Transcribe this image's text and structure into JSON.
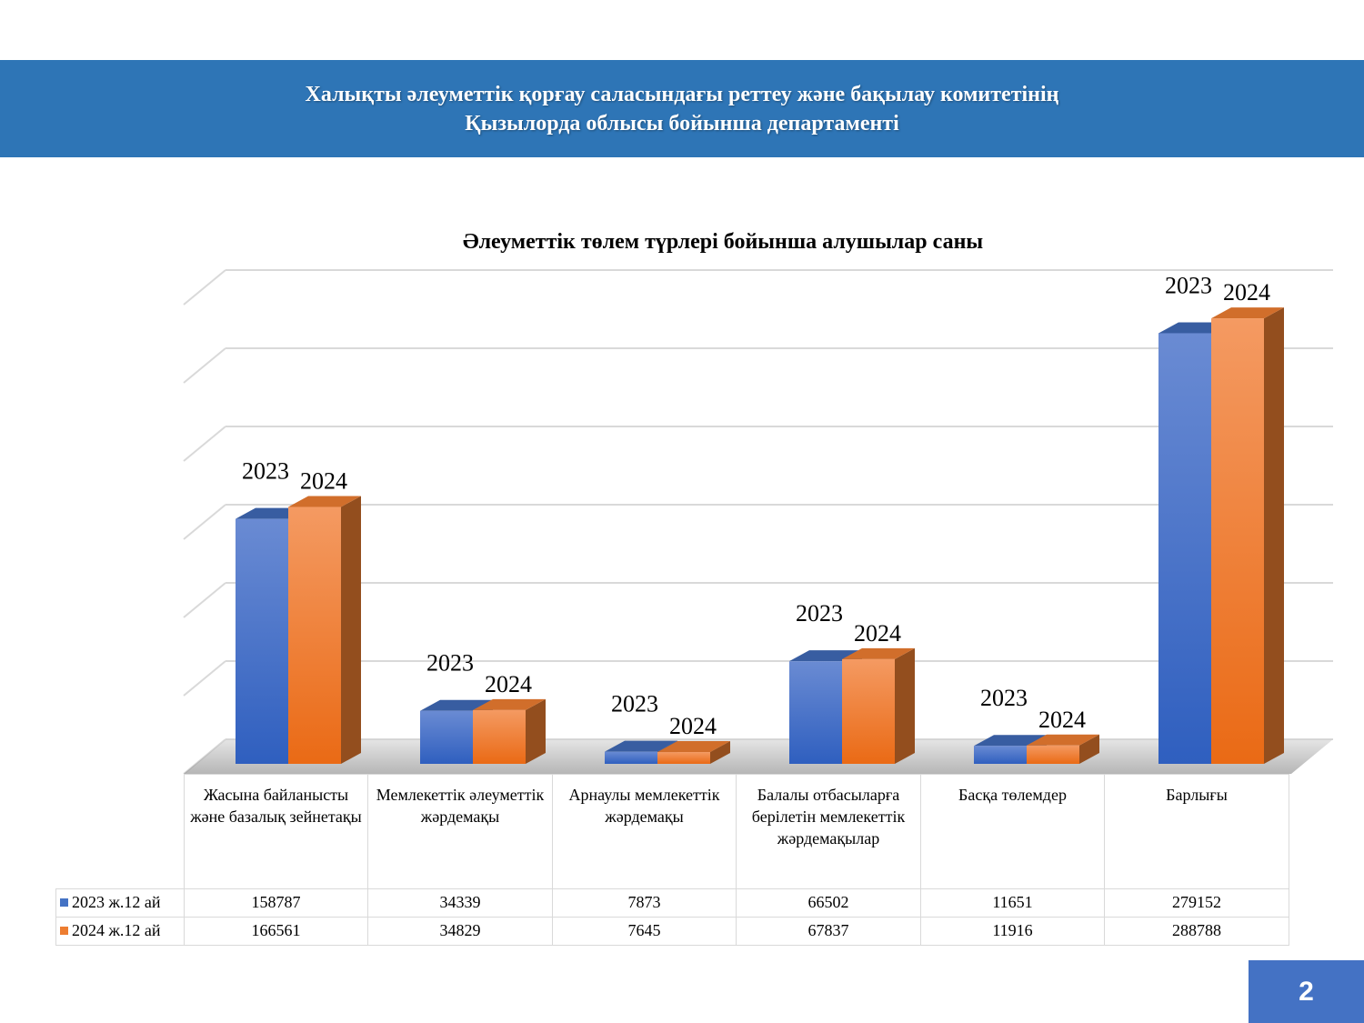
{
  "header": {
    "line1": "Халықты әлеуметтік қорғау саласындағы реттеу және бақылау комитетінің",
    "line2": "Қызылорда облысы бойынша департаменті"
  },
  "page_number": "2",
  "chart_data": {
    "type": "bar",
    "title": "Әлеуметтік төлем түрлері бойынша алушылар саны",
    "categories": [
      "Жасына байланысты және базалық зейнетақы",
      "Мемлекеттік әлеуметтік жәрдемақы",
      "Арнаулы мемлекеттік жәрдемақы",
      "Балалы отбасыларға берілетін мемлекеттік жәрдемақылар",
      "Басқа төлемдер",
      "Барлығы"
    ],
    "series": [
      {
        "name": "2023 ж.12 ай",
        "bar_label": "2023",
        "color": "#4472c4",
        "values": [
          158787,
          34339,
          7873,
          66502,
          11651,
          279152
        ]
      },
      {
        "name": "2024 ж.12 ай",
        "bar_label": "2024",
        "color": "#ed7d31",
        "values": [
          166561,
          34829,
          7645,
          67837,
          11916,
          288788
        ]
      }
    ],
    "ylim": [
      0,
      300000
    ],
    "grid": true,
    "legend": "data-table"
  }
}
